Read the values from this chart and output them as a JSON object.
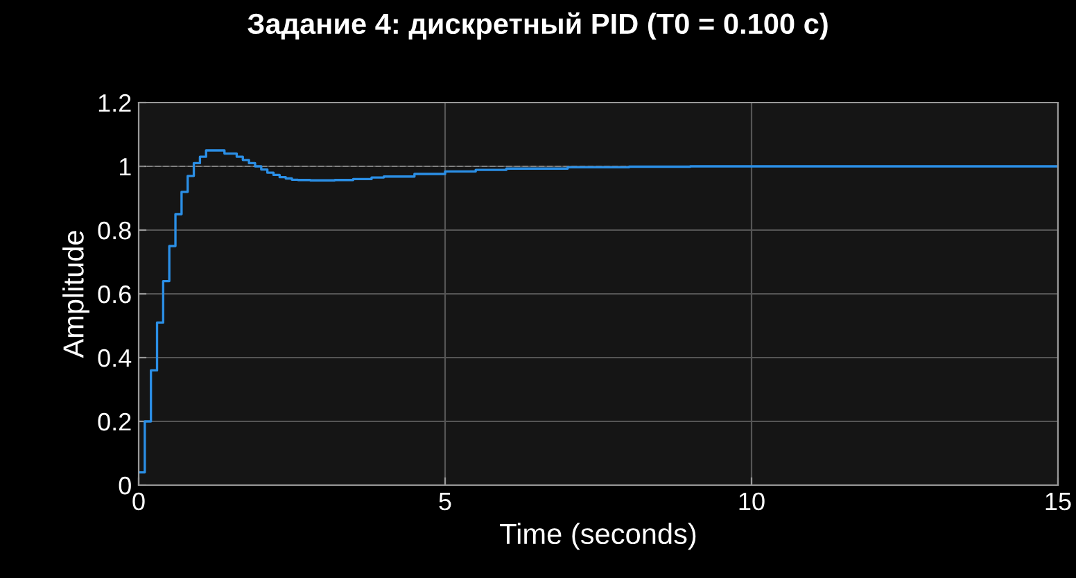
{
  "chart_data": {
    "type": "step",
    "title": "Задание 4: дискретный PID (T0 = 0.100 с)",
    "xlabel": "Time (seconds)",
    "ylabel": "Amplitude",
    "xlim": [
      0,
      15
    ],
    "xticks": [
      0,
      5,
      10,
      15
    ],
    "ylim": [
      0,
      1.2
    ],
    "yticks": [
      0,
      0.2,
      0.4,
      0.6,
      0.8,
      1,
      1.2
    ],
    "grid": true,
    "ref_lines": [
      {
        "axis": "y",
        "value": 1,
        "color": "#808080",
        "line_style": "dashed"
      }
    ],
    "series": [
      {
        "color": "#2b8fe6",
        "x": [
          0,
          0.1,
          0.2,
          0.3,
          0.4,
          0.5,
          0.6,
          0.7,
          0.8,
          0.9,
          1.0,
          1.1,
          1.2,
          1.3,
          1.4,
          1.5,
          1.6,
          1.7,
          1.8,
          1.9,
          2.0,
          2.1,
          2.2,
          2.3,
          2.4,
          2.5,
          2.6,
          2.8,
          3.0,
          3.2,
          3.5,
          3.8,
          4.0,
          4.5,
          5.0,
          5.5,
          6.0,
          7.0,
          8.0,
          9.0,
          10.0,
          15.0
        ],
        "values": [
          0.04,
          0.2,
          0.36,
          0.51,
          0.64,
          0.75,
          0.85,
          0.92,
          0.97,
          1.01,
          1.03,
          1.05,
          1.05,
          1.05,
          1.04,
          1.04,
          1.03,
          1.02,
          1.01,
          1.0,
          0.99,
          0.98,
          0.973,
          0.966,
          0.962,
          0.958,
          0.957,
          0.956,
          0.956,
          0.957,
          0.96,
          0.965,
          0.968,
          0.976,
          0.984,
          0.989,
          0.993,
          0.997,
          0.999,
          1.0,
          1.0,
          1.0
        ]
      }
    ]
  }
}
